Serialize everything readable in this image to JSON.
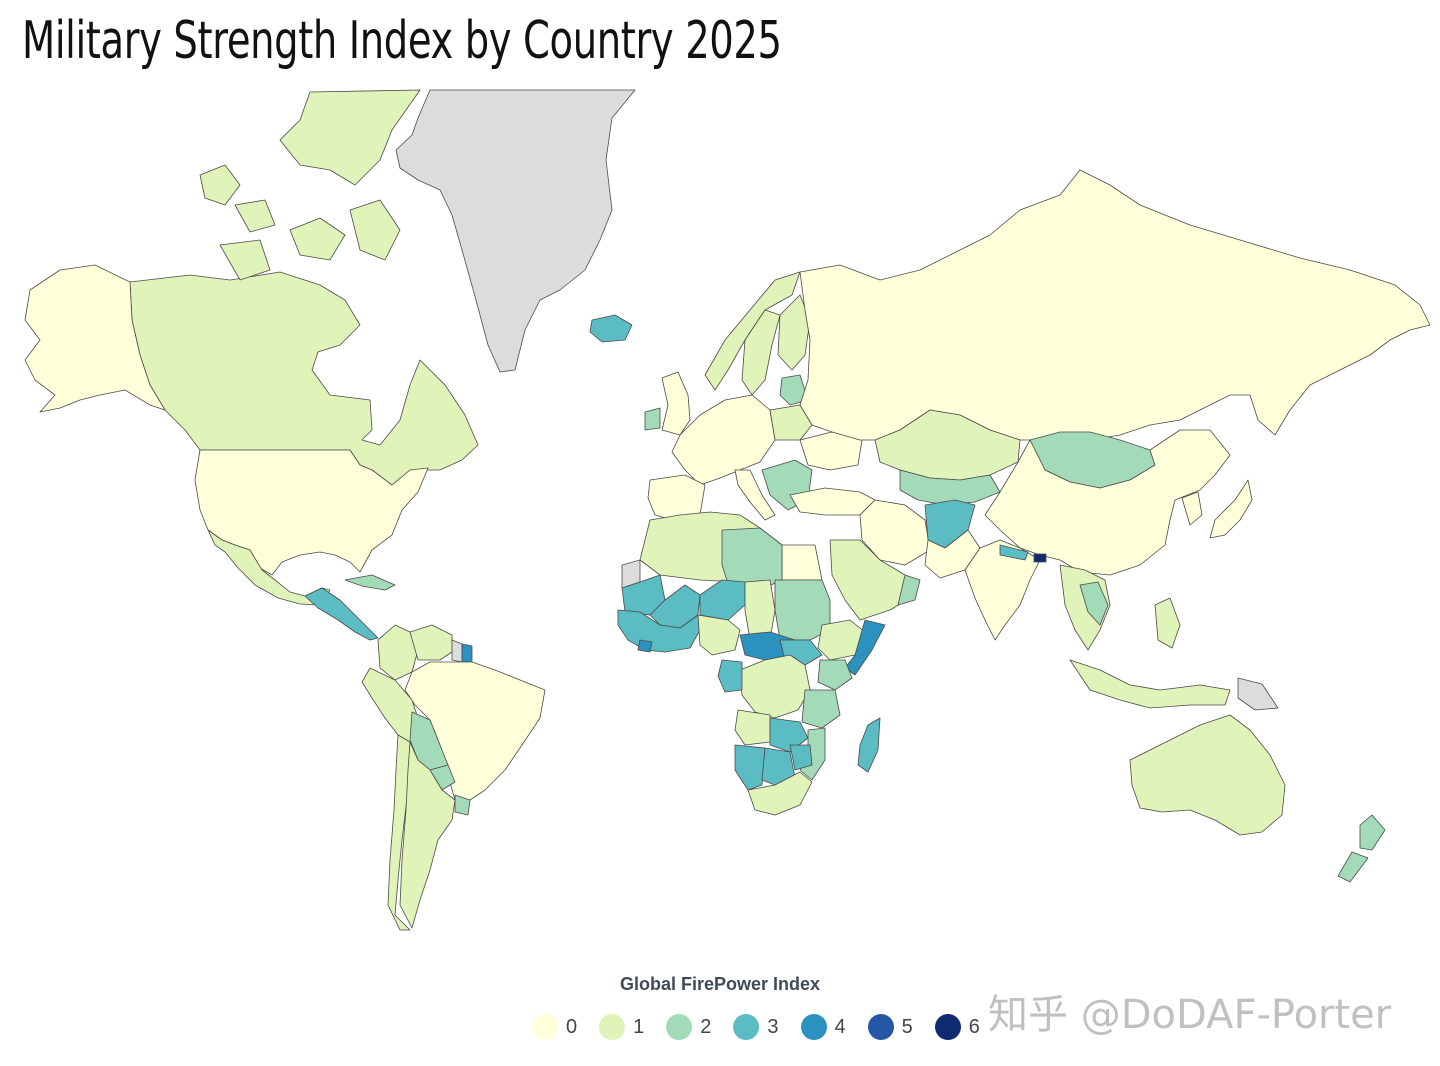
{
  "title": "Military Strength Index by Country 2025",
  "watermark": "知乎 @DoDAF-Porter",
  "legend": {
    "title": "Global FirePower Index",
    "items": [
      {
        "label": "0",
        "color": "#ffffd9"
      },
      {
        "label": "1",
        "color": "#e0f3b8"
      },
      {
        "label": "2",
        "color": "#a3dab7"
      },
      {
        "label": "3",
        "color": "#5bbcc3"
      },
      {
        "label": "4",
        "color": "#2b92c0"
      },
      {
        "label": "5",
        "color": "#2457a4"
      },
      {
        "label": "6",
        "color": "#102a72"
      }
    ]
  },
  "colors": {
    "no_data": "#dcdcdc",
    "border": "#4a4a4a",
    "ocean": "#ffffff"
  },
  "map_data": {
    "type": "choropleth",
    "regions": [
      {
        "name": "Greenland",
        "value": null
      },
      {
        "name": "Canada",
        "value": 1
      },
      {
        "name": "Canadian Arctic Islands",
        "value": 1
      },
      {
        "name": "Alaska (USA)",
        "value": 0
      },
      {
        "name": "United States",
        "value": 0
      },
      {
        "name": "Mexico",
        "value": 1
      },
      {
        "name": "Central America",
        "value": 3
      },
      {
        "name": "Cuba",
        "value": 2
      },
      {
        "name": "Colombia",
        "value": 1
      },
      {
        "name": "Venezuela",
        "value": 1
      },
      {
        "name": "Guyana",
        "value": null
      },
      {
        "name": "Suriname",
        "value": 4
      },
      {
        "name": "Brazil",
        "value": 0
      },
      {
        "name": "Peru",
        "value": 1
      },
      {
        "name": "Bolivia",
        "value": 2
      },
      {
        "name": "Paraguay",
        "value": 2
      },
      {
        "name": "Uruguay",
        "value": 2
      },
      {
        "name": "Chile",
        "value": 1
      },
      {
        "name": "Argentina",
        "value": 1
      },
      {
        "name": "Iceland",
        "value": 3
      },
      {
        "name": "Ireland",
        "value": 2
      },
      {
        "name": "United Kingdom",
        "value": 0
      },
      {
        "name": "Norway",
        "value": 1
      },
      {
        "name": "Sweden",
        "value": 1
      },
      {
        "name": "Finland",
        "value": 1
      },
      {
        "name": "Western Europe",
        "value": 0
      },
      {
        "name": "Spain",
        "value": 0
      },
      {
        "name": "Italy",
        "value": 0
      },
      {
        "name": "Poland",
        "value": 1
      },
      {
        "name": "Baltic States",
        "value": 2
      },
      {
        "name": "Balkans",
        "value": 2
      },
      {
        "name": "Ukraine",
        "value": 0
      },
      {
        "name": "Turkey",
        "value": 0
      },
      {
        "name": "Russia",
        "value": 0
      },
      {
        "name": "Kazakhstan",
        "value": 1
      },
      {
        "name": "Central Asia",
        "value": 2
      },
      {
        "name": "Mongolia",
        "value": 2
      },
      {
        "name": "China",
        "value": 0
      },
      {
        "name": "Japan",
        "value": 0
      },
      {
        "name": "Korean Peninsula",
        "value": 0
      },
      {
        "name": "Iran",
        "value": 0
      },
      {
        "name": "Afghanistan",
        "value": 3
      },
      {
        "name": "Pakistan",
        "value": 0
      },
      {
        "name": "India",
        "value": 0
      },
      {
        "name": "Nepal",
        "value": 3
      },
      {
        "name": "Bhutan",
        "value": 6
      },
      {
        "name": "Arabian Peninsula",
        "value": 1
      },
      {
        "name": "Oman",
        "value": 2
      },
      {
        "name": "Southeast Asia",
        "value": 1
      },
      {
        "name": "Laos",
        "value": 2
      },
      {
        "name": "Philippines",
        "value": 1
      },
      {
        "name": "Indonesia",
        "value": 1
      },
      {
        "name": "Papua New Guinea",
        "value": null
      },
      {
        "name": "Australia",
        "value": 1
      },
      {
        "name": "New Zealand",
        "value": 2
      },
      {
        "name": "Egypt",
        "value": 0
      },
      {
        "name": "North Africa",
        "value": 1
      },
      {
        "name": "Libya",
        "value": 2
      },
      {
        "name": "Western Sahara",
        "value": null
      },
      {
        "name": "Mauritania",
        "value": 3
      },
      {
        "name": "Mali",
        "value": 3
      },
      {
        "name": "Niger",
        "value": 3
      },
      {
        "name": "Chad",
        "value": 1
      },
      {
        "name": "Sudan",
        "value": 2
      },
      {
        "name": "West Africa Coast",
        "value": 3
      },
      {
        "name": "Liberia",
        "value": 4
      },
      {
        "name": "Nigeria",
        "value": 1
      },
      {
        "name": "Central African Republic",
        "value": 4
      },
      {
        "name": "South Sudan",
        "value": 3
      },
      {
        "name": "Ethiopia",
        "value": 1
      },
      {
        "name": "Somalia",
        "value": 4
      },
      {
        "name": "Kenya",
        "value": 2
      },
      {
        "name": "DR Congo",
        "value": 1
      },
      {
        "name": "Gabon",
        "value": 3
      },
      {
        "name": "Tanzania",
        "value": 2
      },
      {
        "name": "Angola",
        "value": 1
      },
      {
        "name": "Zambia",
        "value": 3
      },
      {
        "name": "Mozambique",
        "value": 2
      },
      {
        "name": "Namibia",
        "value": 3
      },
      {
        "name": "Botswana",
        "value": 3
      },
      {
        "name": "Zimbabwe",
        "value": 3
      },
      {
        "name": "South Africa",
        "value": 1
      },
      {
        "name": "Madagascar",
        "value": 3
      }
    ]
  }
}
